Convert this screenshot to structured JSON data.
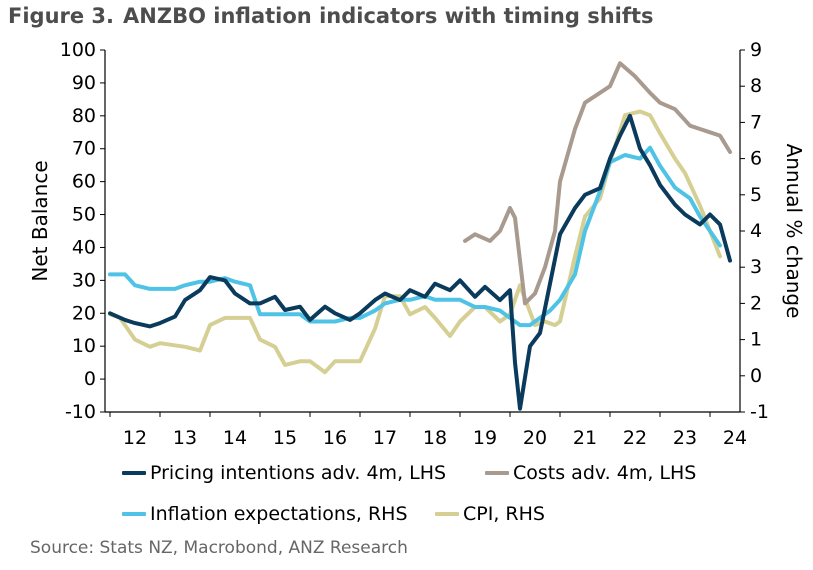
{
  "title": {
    "figure_label": "Figure 3.",
    "text": "ANZBO inflation indicators with timing shifts"
  },
  "source": "Source: Stats NZ, Macrobond, ANZ Research",
  "chart_data": {
    "type": "line",
    "title": "ANZBO inflation indicators with timing shifts",
    "x_ticks": [
      "12",
      "13",
      "14",
      "15",
      "16",
      "17",
      "18",
      "19",
      "20",
      "21",
      "22",
      "23",
      "24"
    ],
    "x_range": [
      2011.9,
      2024.6
    ],
    "ylabel_left": "Net Balance",
    "ylim_left": [
      -10,
      100
    ],
    "yticks_left": [
      -10,
      0,
      10,
      20,
      30,
      40,
      50,
      60,
      70,
      80,
      90,
      100
    ],
    "ylabel_right": "Annual % change",
    "ylim_right": [
      -1,
      9
    ],
    "yticks_right": [
      -1,
      0,
      1,
      2,
      3,
      4,
      5,
      6,
      7,
      8,
      9
    ],
    "series": [
      {
        "name": "Pricing intentions adv. 4m, LHS",
        "axis": "left",
        "color": "#0a3a5c",
        "x": [
          2012.0,
          2012.3,
          2012.5,
          2012.8,
          2013.0,
          2013.3,
          2013.5,
          2013.8,
          2014.0,
          2014.3,
          2014.5,
          2014.8,
          2015.0,
          2015.3,
          2015.5,
          2015.8,
          2016.0,
          2016.3,
          2016.5,
          2016.8,
          2017.0,
          2017.3,
          2017.5,
          2017.8,
          2018.0,
          2018.3,
          2018.5,
          2018.8,
          2019.0,
          2019.3,
          2019.5,
          2019.8,
          2020.0,
          2020.1,
          2020.2,
          2020.4,
          2020.6,
          2020.8,
          2021.0,
          2021.3,
          2021.5,
          2021.8,
          2022.0,
          2022.2,
          2022.4,
          2022.6,
          2022.8,
          2023.0,
          2023.3,
          2023.5,
          2023.8,
          2024.0,
          2024.2,
          2024.4
        ],
        "y": [
          20,
          18,
          17,
          16,
          17,
          19,
          24,
          27,
          31,
          30,
          26,
          23,
          23,
          25,
          21,
          22,
          18,
          22,
          20,
          18,
          20,
          24,
          26,
          24,
          27,
          25,
          29,
          27,
          30,
          25,
          28,
          24,
          27,
          5,
          -9,
          10,
          14,
          29,
          44,
          52,
          56,
          58,
          67,
          74,
          80,
          70,
          65,
          59,
          53,
          50,
          47,
          50,
          47,
          36
        ]
      },
      {
        "name": "Costs adv. 4m, LHS",
        "axis": "left",
        "color": "#a89a8e",
        "x": [
          2019.1,
          2019.3,
          2019.6,
          2019.8,
          2020.0,
          2020.1,
          2020.3,
          2020.5,
          2020.7,
          2020.9,
          2021.0,
          2021.3,
          2021.5,
          2021.8,
          2022.0,
          2022.2,
          2022.5,
          2022.8,
          2023.0,
          2023.3,
          2023.6,
          2023.8,
          2024.0,
          2024.2,
          2024.4
        ],
        "y": [
          42,
          44,
          42,
          45,
          52,
          49,
          23,
          26,
          34,
          45,
          60,
          76,
          84,
          87,
          89,
          96,
          92,
          87,
          84,
          82,
          77,
          76,
          75,
          74,
          69
        ]
      },
      {
        "name": "Inflation expectations, RHS",
        "axis": "right",
        "color": "#4ec3e6",
        "x": [
          2012.0,
          2012.3,
          2012.5,
          2012.8,
          2013.0,
          2013.3,
          2013.5,
          2013.8,
          2014.0,
          2014.3,
          2014.5,
          2014.8,
          2015.0,
          2015.3,
          2015.5,
          2015.8,
          2016.0,
          2016.3,
          2016.5,
          2016.8,
          2017.0,
          2017.3,
          2017.5,
          2017.8,
          2018.0,
          2018.3,
          2018.5,
          2018.8,
          2019.0,
          2019.3,
          2019.5,
          2019.8,
          2020.0,
          2020.2,
          2020.4,
          2020.6,
          2020.8,
          2021.0,
          2021.3,
          2021.5,
          2021.8,
          2022.0,
          2022.3,
          2022.6,
          2022.8,
          2023.0,
          2023.3,
          2023.6,
          2023.8,
          2024.0,
          2024.2
        ],
        "y": [
          2.8,
          2.8,
          2.5,
          2.4,
          2.4,
          2.4,
          2.5,
          2.6,
          2.6,
          2.7,
          2.6,
          2.5,
          1.7,
          1.7,
          1.7,
          1.7,
          1.5,
          1.5,
          1.5,
          1.6,
          1.6,
          1.8,
          2.0,
          2.1,
          2.1,
          2.2,
          2.1,
          2.1,
          2.1,
          1.9,
          1.9,
          1.8,
          1.6,
          1.4,
          1.4,
          1.6,
          1.8,
          2.1,
          2.8,
          4.0,
          5.1,
          5.9,
          6.1,
          6.0,
          6.3,
          5.8,
          5.2,
          4.9,
          4.4,
          4.0,
          3.6
        ]
      },
      {
        "name": "CPI, RHS",
        "axis": "right",
        "color": "#d6cf94",
        "x": [
          2012.0,
          2012.2,
          2012.5,
          2012.8,
          2013.0,
          2013.5,
          2013.8,
          2014.0,
          2014.3,
          2014.5,
          2014.8,
          2015.0,
          2015.3,
          2015.5,
          2015.8,
          2016.0,
          2016.3,
          2016.5,
          2016.8,
          2017.0,
          2017.3,
          2017.5,
          2017.8,
          2018.0,
          2018.3,
          2018.5,
          2018.8,
          2019.0,
          2019.3,
          2019.5,
          2019.8,
          2020.0,
          2020.2,
          2020.5,
          2020.7,
          2020.9,
          2021.0,
          2021.3,
          2021.5,
          2021.8,
          2022.0,
          2022.3,
          2022.6,
          2022.8,
          2023.0,
          2023.3,
          2023.5,
          2023.8,
          2024.0,
          2024.2
        ],
        "y": [
          1.7,
          1.6,
          1.0,
          0.8,
          0.9,
          0.8,
          0.7,
          1.4,
          1.6,
          1.6,
          1.6,
          1.0,
          0.8,
          0.3,
          0.4,
          0.4,
          0.1,
          0.4,
          0.4,
          0.4,
          1.3,
          2.2,
          2.2,
          1.7,
          1.9,
          1.6,
          1.1,
          1.5,
          1.9,
          1.9,
          1.5,
          1.7,
          2.5,
          1.4,
          1.5,
          1.4,
          1.5,
          3.3,
          4.4,
          4.9,
          5.9,
          7.2,
          7.3,
          7.2,
          6.7,
          6.0,
          5.6,
          4.7,
          4.0,
          3.3
        ]
      }
    ]
  }
}
